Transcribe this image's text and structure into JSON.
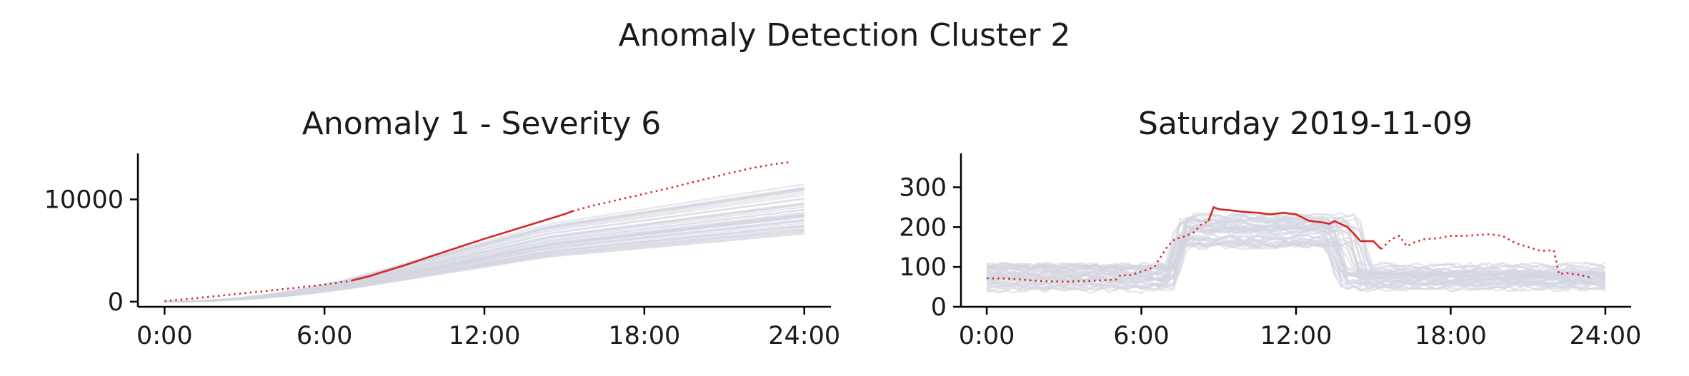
{
  "figure_title": "Anomaly Detection Cluster 2",
  "colors": {
    "background_lines": "#d3d5e0",
    "anomaly": "#d62728"
  },
  "chart_data": [
    {
      "type": "line",
      "title": "Anomaly 1 - Severity 6",
      "x_ticks": [
        "0:00",
        "6:00",
        "12:00",
        "18:00",
        "24:00"
      ],
      "y_ticks": [
        "0",
        "10000"
      ],
      "xlim": [
        -1,
        25
      ],
      "ylim": [
        -500,
        14500
      ],
      "anomaly_series": {
        "name": "anomaly",
        "x": [
          0,
          1,
          2,
          3,
          4,
          5,
          6,
          7,
          7.7,
          8,
          9,
          10,
          11,
          12,
          13,
          14,
          15,
          15.3,
          16,
          17,
          18,
          19,
          20,
          21,
          22,
          23,
          23.5
        ],
        "y": [
          50,
          300,
          560,
          830,
          1100,
          1380,
          1680,
          2050,
          2500,
          2750,
          3550,
          4450,
          5300,
          6150,
          6950,
          7750,
          8550,
          8850,
          9350,
          9950,
          10550,
          11150,
          11800,
          12450,
          13050,
          13500,
          13650
        ],
        "solid_range": [
          7.7,
          15.3
        ]
      },
      "background_series_summary": {
        "count": 45,
        "end_value_min": 6500,
        "end_value_max": 11500
      }
    },
    {
      "type": "line",
      "title": "Saturday 2019-11-09",
      "x_ticks": [
        "0:00",
        "6:00",
        "12:00",
        "18:00",
        "24:00"
      ],
      "y_ticks": [
        "0",
        "100",
        "200",
        "300"
      ],
      "xlim": [
        -1,
        25
      ],
      "ylim": [
        0,
        385
      ],
      "anomaly_series": {
        "name": "anomaly",
        "x": [
          0,
          1,
          2,
          3,
          4,
          5,
          5.2,
          5.5,
          6,
          6.5,
          7,
          7.3,
          7.6,
          8,
          8.3,
          8.6,
          8.8,
          9,
          9.5,
          10,
          10.5,
          11,
          11.5,
          12,
          12.5,
          13,
          13.3,
          13.5,
          14,
          14.5,
          15,
          15.3,
          15.7,
          16,
          16.3,
          16.6,
          17,
          17.5,
          18,
          18.5,
          19,
          19.5,
          20,
          20.5,
          21,
          21.5,
          22,
          22.2,
          22.5,
          23,
          23.5
        ],
        "y": [
          72,
          70,
          65,
          63,
          65,
          68,
          80,
          78,
          88,
          100,
          150,
          170,
          175,
          185,
          205,
          215,
          250,
          245,
          242,
          238,
          236,
          232,
          236,
          232,
          216,
          212,
          208,
          215,
          200,
          165,
          165,
          145,
          170,
          178,
          152,
          162,
          170,
          172,
          178,
          178,
          180,
          182,
          178,
          160,
          150,
          140,
          142,
          82,
          85,
          80,
          72
        ],
        "solid_range": [
          8.8,
          15.3
        ]
      },
      "background_series_summary": {
        "count": 45,
        "night_value_range": [
          40,
          110
        ],
        "day_value_range": [
          150,
          230
        ]
      }
    }
  ]
}
